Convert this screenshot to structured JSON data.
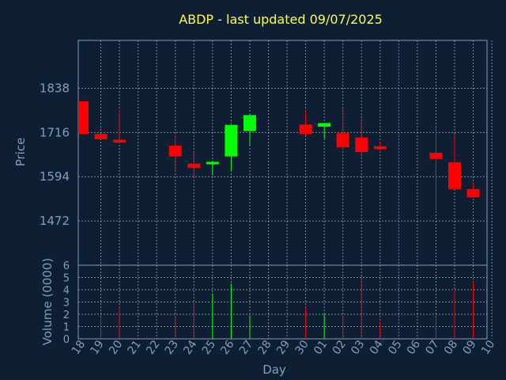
{
  "chart_data": {
    "type": "candlestick",
    "title": "ABDP - last updated 09/07/2025",
    "xlabel": "Day",
    "ylabel": "Price",
    "volume_label": "Volume (0000)",
    "price_ticks": [
      1472,
      1594,
      1716,
      1838
    ],
    "volume_ticks": [
      0,
      1,
      2,
      3,
      4,
      5,
      6
    ],
    "ylim": [
      1350,
      1970
    ],
    "volume_ylim": [
      0,
      6
    ],
    "grid": true,
    "colors": {
      "up": "#00ff00",
      "down": "#ff0000",
      "title": "#ffff33",
      "axis": "#7f9ec0",
      "background": "#0f1f33"
    },
    "days": [
      "18",
      "19",
      "20",
      "21",
      "22",
      "23",
      "24",
      "25",
      "26",
      "27",
      "28",
      "29",
      "30",
      "01",
      "02",
      "03",
      "04",
      "05",
      "06",
      "07",
      "08",
      "09",
      "10"
    ],
    "candles": [
      {
        "day": "18",
        "open": 1802,
        "close": 1712,
        "high": 1802,
        "low": 1712,
        "volume": 0
      },
      {
        "day": "19",
        "open": 1712,
        "close": 1697,
        "high": 1712,
        "low": 1697,
        "volume": 1.7
      },
      {
        "day": "20",
        "open": 1696,
        "close": 1688,
        "high": 1778,
        "low": 1688,
        "volume": 2.6
      },
      {
        "day": "23",
        "open": 1680,
        "close": 1650,
        "high": 1708,
        "low": 1608,
        "volume": 1.9
      },
      {
        "day": "24",
        "open": 1630,
        "close": 1618,
        "high": 1660,
        "low": 1590,
        "volume": 2.9
      },
      {
        "day": "25",
        "open": 1630,
        "close": 1635,
        "high": 1638,
        "low": 1598,
        "volume": 3.7
      },
      {
        "day": "26",
        "open": 1650,
        "close": 1737,
        "high": 1737,
        "low": 1610,
        "volume": 4.5
      },
      {
        "day": "27",
        "open": 1720,
        "close": 1764,
        "high": 1764,
        "low": 1680,
        "volume": 1.9
      },
      {
        "day": "30",
        "open": 1738,
        "close": 1712,
        "high": 1778,
        "low": 1708,
        "volume": 2.6
      },
      {
        "day": "01",
        "open": 1732,
        "close": 1742,
        "high": 1742,
        "low": 1700,
        "volume": 2.0
      },
      {
        "day": "02",
        "open": 1714,
        "close": 1675,
        "high": 1782,
        "low": 1670,
        "volume": 1.8
      },
      {
        "day": "03",
        "open": 1702,
        "close": 1662,
        "high": 1754,
        "low": 1650,
        "volume": 5.1
      },
      {
        "day": "04",
        "open": 1678,
        "close": 1670,
        "high": 1690,
        "low": 1670,
        "volume": 1.4
      },
      {
        "day": "07",
        "open": 1660,
        "close": 1643,
        "high": 1730,
        "low": 1500,
        "volume": 1.7
      },
      {
        "day": "08",
        "open": 1634,
        "close": 1560,
        "high": 1712,
        "low": 1560,
        "volume": 4.0
      },
      {
        "day": "09",
        "open": 1560,
        "close": 1538,
        "high": 1576,
        "low": 1538,
        "volume": 4.7
      }
    ]
  }
}
